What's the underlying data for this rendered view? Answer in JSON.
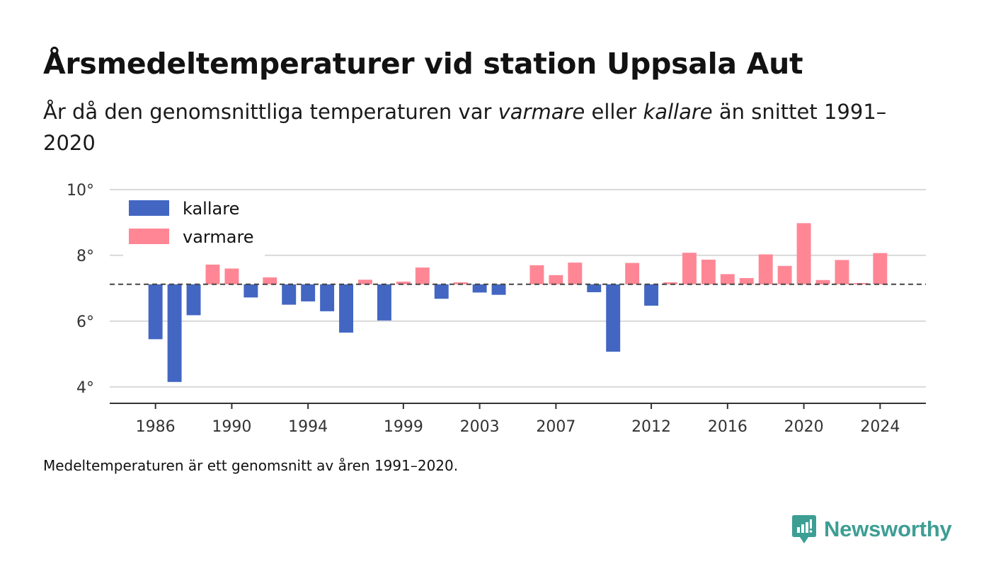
{
  "header": {
    "title": "Årsmedeltemperaturer vid station Uppsala Aut",
    "subtitle_part1": "År då den genomsnittliga temperaturen var ",
    "subtitle_warm": "varmare",
    "subtitle_part2": " eller ",
    "subtitle_cold": "kallare",
    "subtitle_part3": " än snittet 1991–2020"
  },
  "footnote": "Medeltemperaturen är ett genomsnitt av åren 1991–2020.",
  "brand": {
    "name": "Newsworthy",
    "icon": "newsworthy-logo-icon",
    "color": "#3d9e94"
  },
  "chart_data": {
    "type": "bar",
    "baseline": 7.12,
    "ylim": [
      3.5,
      10
    ],
    "yticks": [
      4,
      6,
      8,
      10
    ],
    "ytick_labels": [
      "4°",
      "6°",
      "8°",
      "10°"
    ],
    "xticks": [
      1986,
      1990,
      1994,
      1999,
      2003,
      2007,
      2012,
      2016,
      2020,
      2024
    ],
    "xlim": [
      1983.6,
      2026.4
    ],
    "grid": true,
    "legend_position": "top-left",
    "legend": [
      {
        "key": "kallare",
        "label": "kallare",
        "color": "#4266c2"
      },
      {
        "key": "varmare",
        "label": "varmare",
        "color": "#ff8795"
      }
    ],
    "x": [
      1986,
      1987,
      1988,
      1989,
      1990,
      1991,
      1992,
      1993,
      1994,
      1995,
      1996,
      1997,
      1998,
      1999,
      2000,
      2001,
      2002,
      2003,
      2004,
      2006,
      2007,
      2008,
      2009,
      2010,
      2011,
      2012,
      2013,
      2014,
      2015,
      2016,
      2017,
      2018,
      2019,
      2020,
      2021,
      2022,
      2023,
      2024
    ],
    "values": [
      5.45,
      4.15,
      6.18,
      7.72,
      7.6,
      6.72,
      7.33,
      6.5,
      6.6,
      6.3,
      5.65,
      7.26,
      6.02,
      7.2,
      7.63,
      6.68,
      7.18,
      6.87,
      6.8,
      7.7,
      7.4,
      7.78,
      6.88,
      5.07,
      7.77,
      6.47,
      7.18,
      8.08,
      7.87,
      7.43,
      7.31,
      8.03,
      7.68,
      8.98,
      7.25,
      7.86,
      7.16,
      8.07
    ]
  }
}
